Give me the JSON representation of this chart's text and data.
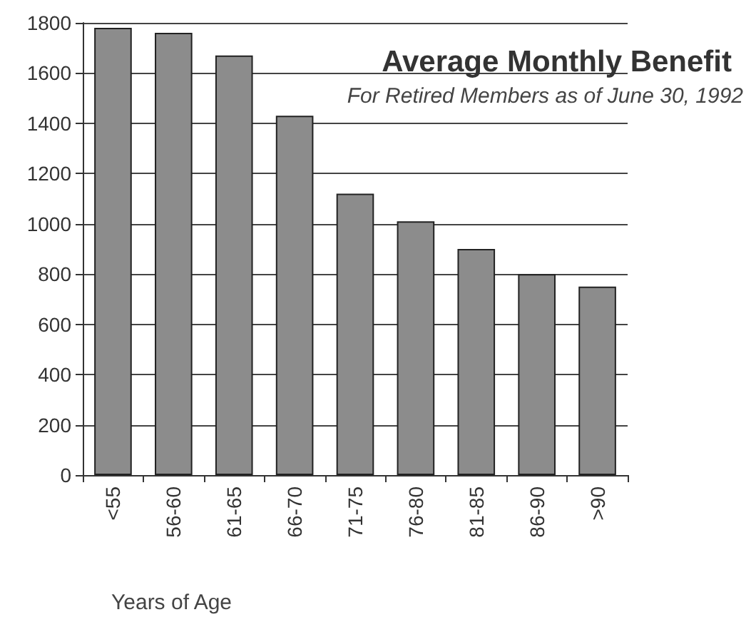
{
  "chart_data": {
    "type": "bar",
    "title": "Average Monthly Benefit",
    "subtitle": "For Retired Members as of June 30, 1992",
    "xlabel": "Years of Age",
    "categories": [
      "<55",
      "56-60",
      "61-65",
      "66-70",
      "71-75",
      "76-80",
      "81-85",
      "86-90",
      ">90"
    ],
    "values": [
      1780,
      1760,
      1670,
      1430,
      1120,
      1010,
      900,
      800,
      750
    ],
    "color": "#8c8c8c",
    "ylim": [
      0,
      1800
    ],
    "yticks": [
      0,
      200,
      400,
      600,
      800,
      1000,
      1200,
      1400,
      1600,
      1800
    ],
    "grid": "y"
  }
}
